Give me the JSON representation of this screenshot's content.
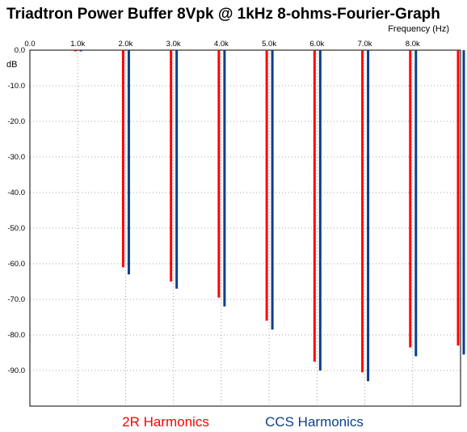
{
  "chart_data": {
    "type": "bar",
    "title": "Triadtron Power Buffer 8Vpk @ 1kHz 8-ohms-Fourier-Graph",
    "xlabel": "Frequency  (Hz)",
    "ylabel": "dB",
    "xlim": [
      0,
      9000
    ],
    "ylim": [
      -100,
      0
    ],
    "x_ticks": [
      "0.0",
      "1.0k",
      "2.0k",
      "3.0k",
      "4.0k",
      "5.0k",
      "6.0k",
      "7.0k",
      "8.0k"
    ],
    "y_ticks": [
      "0.0",
      "-10.0",
      "-20.0",
      "-30.0",
      "-40.0",
      "-50.0",
      "-60.0",
      "-70.0",
      "-80.0",
      "-90.0"
    ],
    "grid": true,
    "series": [
      {
        "name": "2R Harmonics",
        "color": "#ff0000",
        "x": [
          1000,
          2000,
          3000,
          4000,
          5000,
          6000,
          7000,
          8000,
          9000
        ],
        "values": [
          0,
          -61,
          -65,
          -69.5,
          -76,
          -87.5,
          -90.5,
          -83.5,
          -83
        ]
      },
      {
        "name": "CCS Harmonics",
        "color": "#0b3f8a",
        "x": [
          1000,
          2000,
          3000,
          4000,
          5000,
          6000,
          7000,
          8000,
          9000
        ],
        "values": [
          0,
          -63,
          -67,
          -72,
          -78.5,
          -90,
          -93,
          -86,
          -85.5
        ]
      }
    ],
    "legend": {
      "placement": "bottom",
      "items": [
        {
          "label": "2R Harmonics",
          "color": "#ff0000"
        },
        {
          "label": "CCS Harmonics",
          "color": "#0b3f8a"
        }
      ]
    }
  }
}
